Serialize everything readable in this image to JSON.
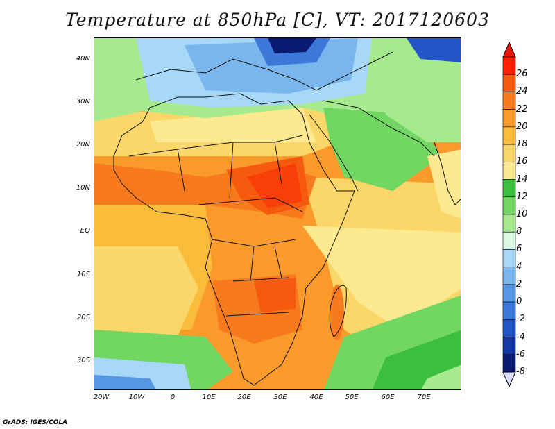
{
  "title": "Temperature at 850hPa [C], VT: 2017120603",
  "credit": "GrADS: IGES/COLA",
  "chart_data": {
    "type": "heatmap",
    "variable": "Temperature at 850hPa",
    "units": "C",
    "valid_time": "2017120603",
    "lon_range": [
      -22,
      80
    ],
    "lat_range": [
      -37,
      45
    ],
    "lat_ticks": [
      "40N",
      "30N",
      "20N",
      "10N",
      "EQ",
      "10S",
      "20S",
      "30S"
    ],
    "lat_values": [
      40,
      30,
      20,
      10,
      0,
      -10,
      -20,
      -30
    ],
    "lon_ticks": [
      "20W",
      "10W",
      "0",
      "10E",
      "20E",
      "30E",
      "40E",
      "50E",
      "60E",
      "70E"
    ],
    "lon_values": [
      -20,
      -10,
      0,
      10,
      20,
      30,
      40,
      50,
      60,
      70
    ],
    "colorbar": {
      "levels": [
        "26",
        "24",
        "22",
        "20",
        "18",
        "16",
        "14",
        "12",
        "10",
        "8",
        "6",
        "4",
        "2",
        "0",
        "-2",
        "-4",
        "-6",
        "-8"
      ],
      "colors": [
        "#ff2000",
        "#f55a0f",
        "#f87a1e",
        "#f99a2b",
        "#f9bd3b",
        "#fbd76a",
        "#fde98f",
        "#3cbf3c",
        "#72d662",
        "#a6ea8d",
        "#daf8e4",
        "#a8d8f8",
        "#7ab6ee",
        "#5597e2",
        "#3c78d8",
        "#2255c8",
        "#1338a6",
        "#0a1a70"
      ],
      "top_arrow_color": "#e8160a",
      "bottom_arrow_color": "#dcdcff"
    }
  }
}
